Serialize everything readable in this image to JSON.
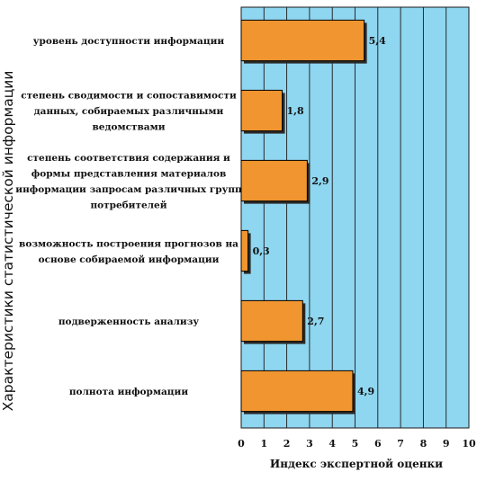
{
  "chart_data": {
    "type": "bar",
    "orientation": "horizontal",
    "categories": [
      [
        "уровень доступности информации"
      ],
      [
        "степень сводимости и сопоставимости",
        "данных, собираемых различными",
        "ведомствами"
      ],
      [
        "степень соответствия содержания и",
        "формы представления материалов",
        "информации запросам различных групп",
        "потребителей"
      ],
      [
        "возможность построения прогнозов на",
        "основе собираемой информации"
      ],
      [
        "подверженность анализу"
      ],
      [
        "полнота информации"
      ]
    ],
    "values": [
      5.4,
      1.8,
      2.9,
      0.3,
      2.7,
      4.9
    ],
    "value_labels": [
      "5,4",
      "1,8",
      "2,9",
      "0,3",
      "2,7",
      "4,9"
    ],
    "xlim": [
      0,
      10
    ],
    "xticks": [
      "0",
      "1",
      "2",
      "3",
      "4",
      "5",
      "6",
      "7",
      "8",
      "9",
      "10"
    ],
    "xlabel": "Индекс экспертной оценки",
    "ylabel": "Характеристики статистической информации",
    "grid": "vertical",
    "colors": {
      "plot_background": "#8fd6f0",
      "bar_fill": "#f0952f",
      "bar_stroke": "#000000",
      "bar_shadow": "#2a2a2a",
      "grid": "#1a1a1a"
    }
  }
}
